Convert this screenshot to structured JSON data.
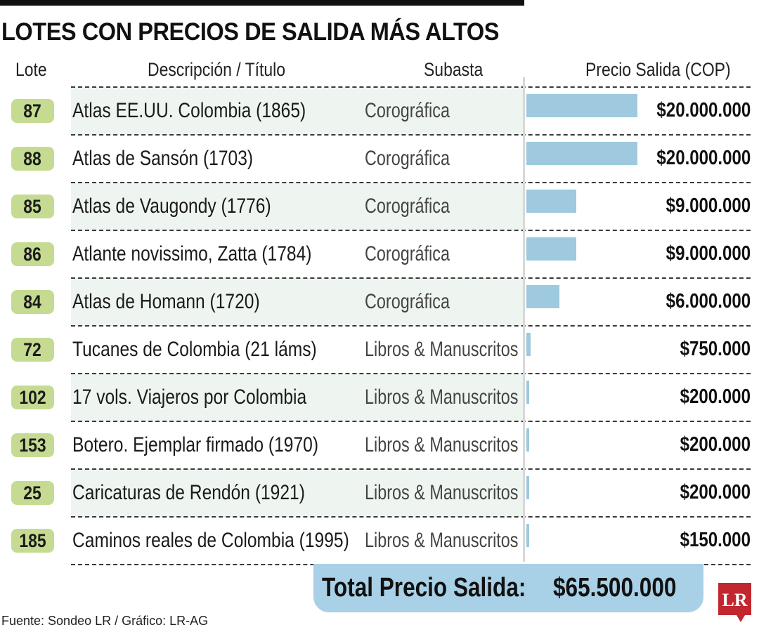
{
  "title": "LOTES CON PRECIOS DE SALIDA MÁS ALTOS",
  "headers": {
    "lote": "Lote",
    "descripcion": "Descripción / Título",
    "subasta": "Subasta",
    "precio": "Precio Salida (COP)"
  },
  "rows": [
    {
      "lote": "87",
      "descripcion": "Atlas EE.UU. Colombia (1865)",
      "subasta": "Corográfica",
      "precio": "$20.000.000"
    },
    {
      "lote": "88",
      "descripcion": "Atlas de Sansón (1703)",
      "subasta": "Corográfica",
      "precio": "$20.000.000"
    },
    {
      "lote": "85",
      "descripcion": "Atlas de Vaugondy (1776)",
      "subasta": "Corográfica",
      "precio": "$9.000.000"
    },
    {
      "lote": "86",
      "descripcion": "Atlante novissimo, Zatta (1784)",
      "subasta": "Corográfica",
      "precio": "$9.000.000"
    },
    {
      "lote": "84",
      "descripcion": "Atlas de Homann (1720)",
      "subasta": "Corográfica",
      "precio": "$6.000.000"
    },
    {
      "lote": "72",
      "descripcion": "Tucanes de Colombia (21 láms)",
      "subasta": "Libros & Manuscritos",
      "precio": "$750.000"
    },
    {
      "lote": "102",
      "descripcion": "17 vols. Viajeros por Colombia",
      "subasta": "Libros & Manuscritos",
      "precio": "$200.000"
    },
    {
      "lote": "153",
      "descripcion": "Botero. Ejemplar firmado (1970)",
      "subasta": "Libros & Manuscritos",
      "precio": "$200.000"
    },
    {
      "lote": "25",
      "descripcion": "Caricaturas de Rendón (1921)",
      "subasta": "Libros & Manuscritos",
      "precio": "$200.000"
    },
    {
      "lote": "185",
      "descripcion": "Caminos reales de Colombia (1995)",
      "subasta": "Libros & Manuscritos",
      "precio": "$150.000"
    }
  ],
  "chart_data": {
    "type": "bar",
    "orientation": "horizontal",
    "categories": [
      "87",
      "88",
      "85",
      "86",
      "84",
      "72",
      "102",
      "153",
      "25",
      "185"
    ],
    "values": [
      20000000,
      20000000,
      9000000,
      9000000,
      6000000,
      750000,
      200000,
      200000,
      200000,
      150000
    ],
    "xlim": [
      0,
      20000000
    ]
  },
  "total": {
    "label": "Total Precio Salida:",
    "value": "$65.500.000"
  },
  "source": "Fuente: Sondeo LR / Gráfico: LR-AG",
  "logo_text": "LR",
  "colors": {
    "bar": "#9ec9df",
    "badge": "#c6db92",
    "total_box": "#a8d0e6",
    "logo": "#c2262e"
  }
}
